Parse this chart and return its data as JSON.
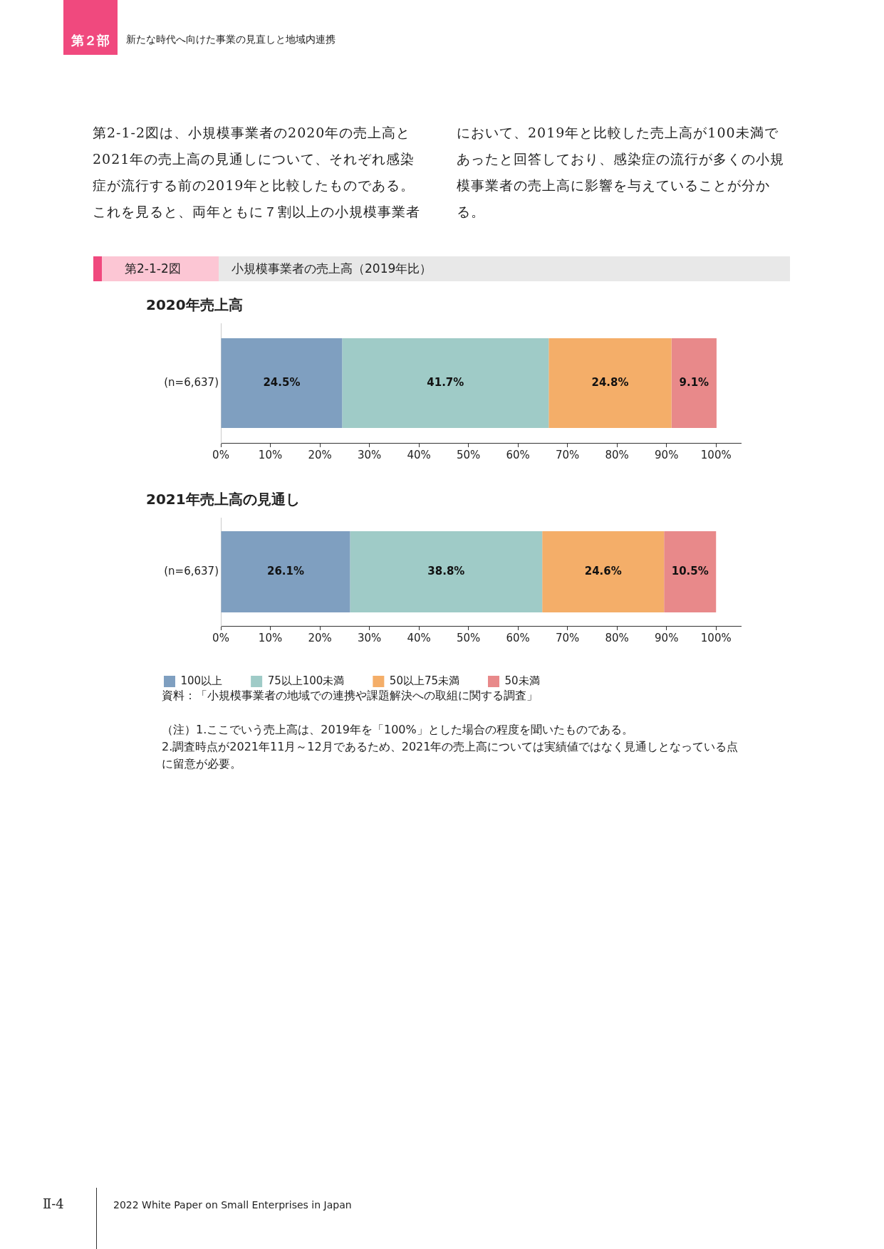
{
  "chart_data": [
    {
      "type": "bar",
      "title": "2020年売上高",
      "categories": [
        "(n=6,637)"
      ],
      "orientation": "horizontal",
      "stacked": true,
      "xlim": [
        0,
        105
      ],
      "xticks": [
        {
          "value": 0,
          "label": "0%"
        },
        {
          "value": 10,
          "label": "10%"
        },
        {
          "value": 20,
          "label": "20%"
        },
        {
          "value": 30,
          "label": "30%"
        },
        {
          "value": 40,
          "label": "40%"
        },
        {
          "value": 50,
          "label": "50%"
        },
        {
          "value": 60,
          "label": "60%"
        },
        {
          "value": 70,
          "label": "70%"
        },
        {
          "value": 80,
          "label": "80%"
        },
        {
          "value": 90,
          "label": "90%"
        },
        {
          "value": 100,
          "label": "100%"
        }
      ],
      "grid": false,
      "legend": false,
      "series": [
        {
          "color": "#7f9fc0",
          "values": [
            24.5
          ],
          "value_labels": [
            "24.5%"
          ]
        },
        {
          "color": "#9fcbc7",
          "values": [
            41.7
          ],
          "value_labels": [
            "41.7%"
          ]
        },
        {
          "color": "#f4ae69",
          "values": [
            24.8
          ],
          "value_labels": [
            "24.8%"
          ]
        },
        {
          "color": "#e8898a",
          "values": [
            9.1
          ],
          "value_labels": [
            "9.1%"
          ]
        }
      ],
      "annotations": [
        "第２部",
        "新たな時代へ向けた事業の見直しと地域内連携",
        "第2-1-2図は、小規模事業者の2020年の売上高と2021年の売上高の見通しについて、それぞれ感染症が流行する前の2019年と比較したものである。これを見ると、両年ともに７割以上の小規模事業者において、2019年と比較した売上高が100未満であったと回答しており、感染症の流行が多くの小規模事業者の売上高に影響を与えていることが分かる。",
        "第2-1-2図",
        "小規模事業者の売上高（2019年比）",
        "Ⅱ-4",
        "2022 White Paper on Small Enterprises in Japan"
      ]
    },
    {
      "type": "bar",
      "title": "2021年売上高の見通し",
      "categories": [
        "(n=6,637)"
      ],
      "orientation": "horizontal",
      "stacked": true,
      "xlim": [
        0,
        105
      ],
      "xticks": [
        {
          "value": 0,
          "label": "0%"
        },
        {
          "value": 10,
          "label": "10%"
        },
        {
          "value": 20,
          "label": "20%"
        },
        {
          "value": 30,
          "label": "30%"
        },
        {
          "value": 40,
          "label": "40%"
        },
        {
          "value": 50,
          "label": "50%"
        },
        {
          "value": 60,
          "label": "60%"
        },
        {
          "value": 70,
          "label": "70%"
        },
        {
          "value": 80,
          "label": "80%"
        },
        {
          "value": 90,
          "label": "90%"
        },
        {
          "value": 100,
          "label": "100%"
        }
      ],
      "grid": false,
      "legend": "bottom",
      "series": [
        {
          "name": "100以上",
          "color": "#7f9fc0",
          "values": [
            26.1
          ],
          "value_labels": [
            "26.1%"
          ]
        },
        {
          "name": "75以上100未満",
          "color": "#9fcbc7",
          "values": [
            38.8
          ],
          "value_labels": [
            "38.8%"
          ]
        },
        {
          "name": "50以上75未満",
          "color": "#f4ae69",
          "values": [
            24.6
          ],
          "value_labels": [
            "24.6%"
          ]
        },
        {
          "name": "50未満",
          "color": "#e8898a",
          "values": [
            10.5
          ],
          "value_labels": [
            "10.5%"
          ]
        }
      ],
      "annotations": [
        "資料：「小規模事業者の地域での連携や課題解決への取組に関する調査」",
        "（注）1.ここでいう売上高は、2019年を「100%」とした場合の程度を聞いたものである。",
        "2.調査時点が2021年11月～12月であるため、2021年の売上高については実績値ではなく見通しとなっている点に留意が必要。"
      ]
    }
  ]
}
